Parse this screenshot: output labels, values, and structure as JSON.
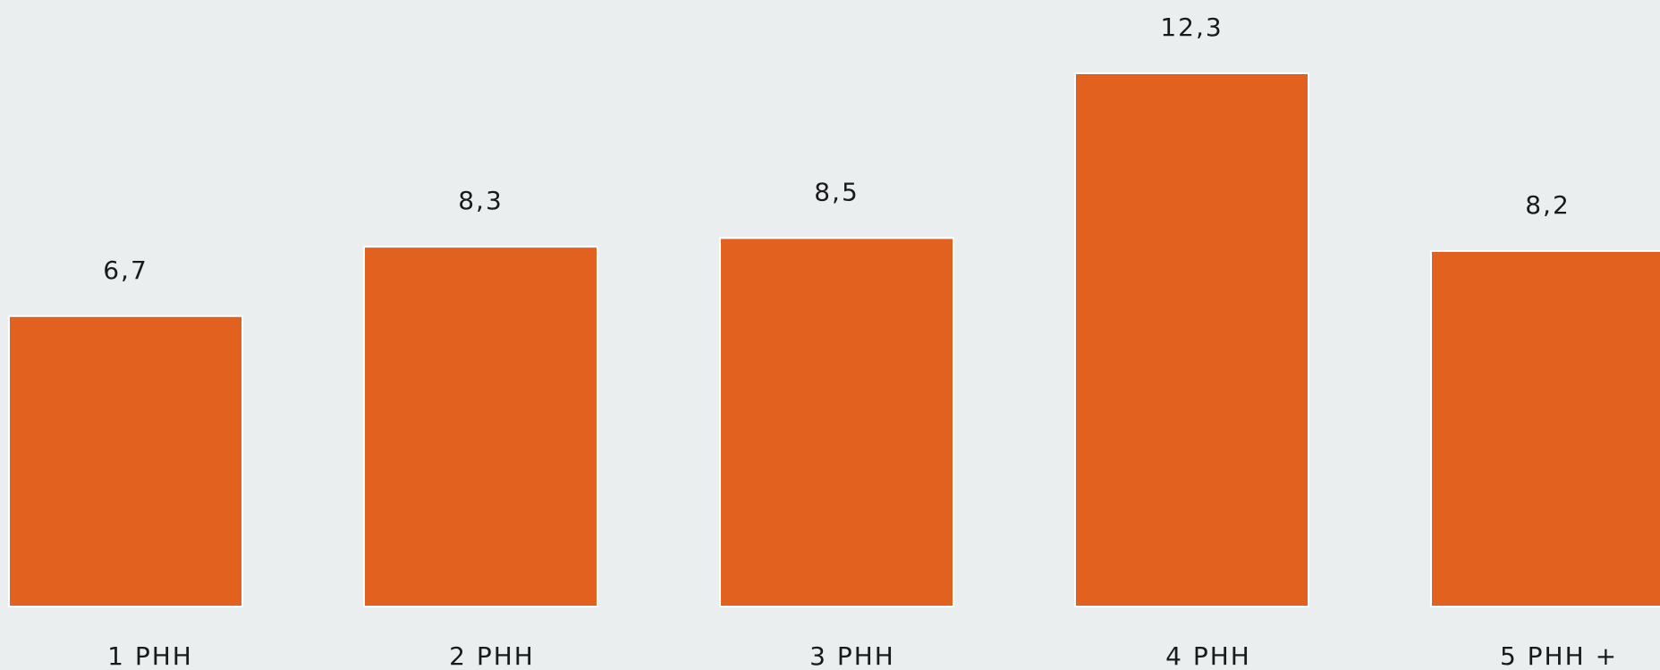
{
  "chart_data": {
    "type": "bar",
    "categories": [
      "1 PHH",
      "2 PHH",
      "3 PHH",
      "4 PHH",
      "5 PHH +"
    ],
    "values": [
      6.7,
      8.3,
      8.5,
      12.3,
      8.2
    ],
    "value_labels": [
      "6,7",
      "8,3",
      "8,5",
      "12,3",
      "8,2"
    ],
    "title": "",
    "xlabel": "",
    "ylabel": "",
    "ylim": [
      0,
      12.3
    ],
    "grid": false,
    "legend": "none"
  },
  "colors": {
    "bar": "#e2611f",
    "background": "#eaeeee"
  }
}
